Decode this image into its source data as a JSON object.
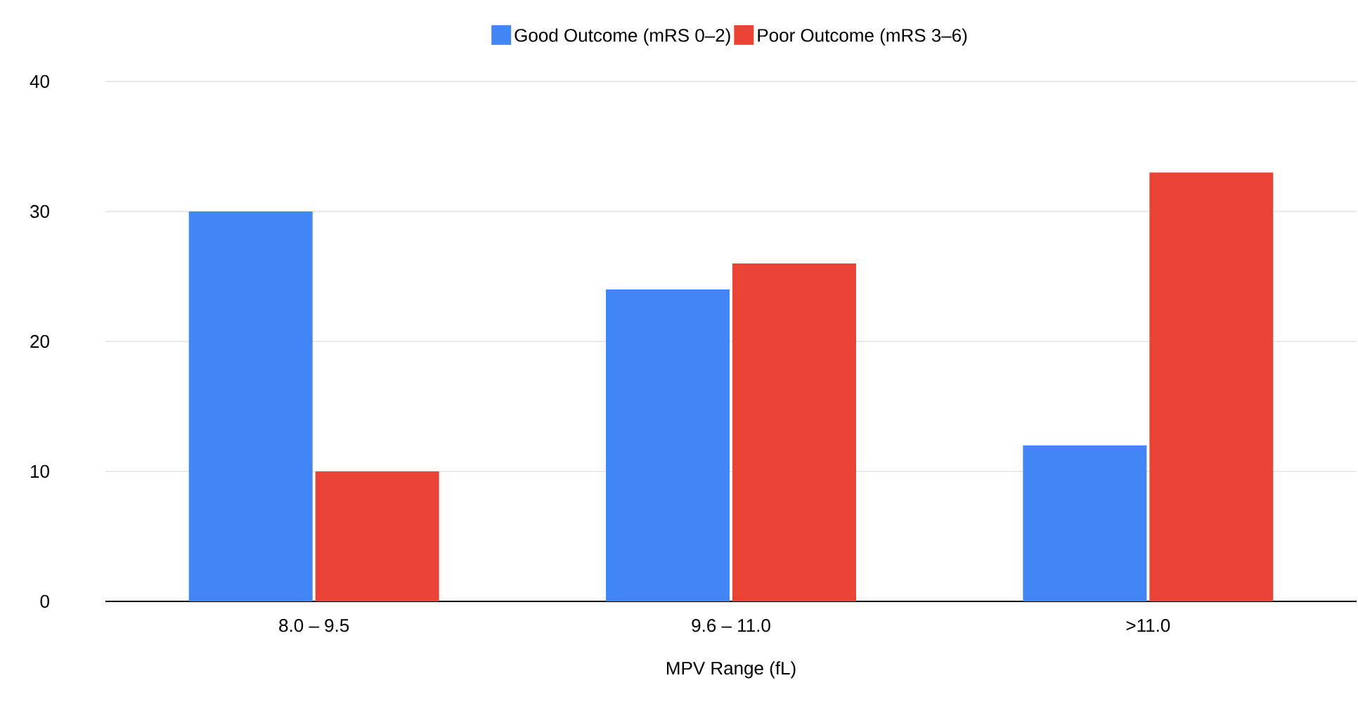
{
  "chart_data": {
    "type": "bar",
    "xlabel": "MPV Range (fL)",
    "categories": [
      "8.0 – 9.5",
      "9.6 – 11.0",
      ">11.0"
    ],
    "series": [
      {
        "name": "Good Outcome (mRS 0–2)",
        "color": "#4285f4",
        "values": [
          30,
          24,
          12
        ]
      },
      {
        "name": "Poor Outcome (mRS 3–6)",
        "color": "#ea4335",
        "values": [
          10,
          26,
          33
        ]
      }
    ],
    "ylim": [
      0,
      40
    ],
    "yticks": [
      0,
      10,
      20,
      30,
      40
    ],
    "grid": "y",
    "legend": "top"
  }
}
